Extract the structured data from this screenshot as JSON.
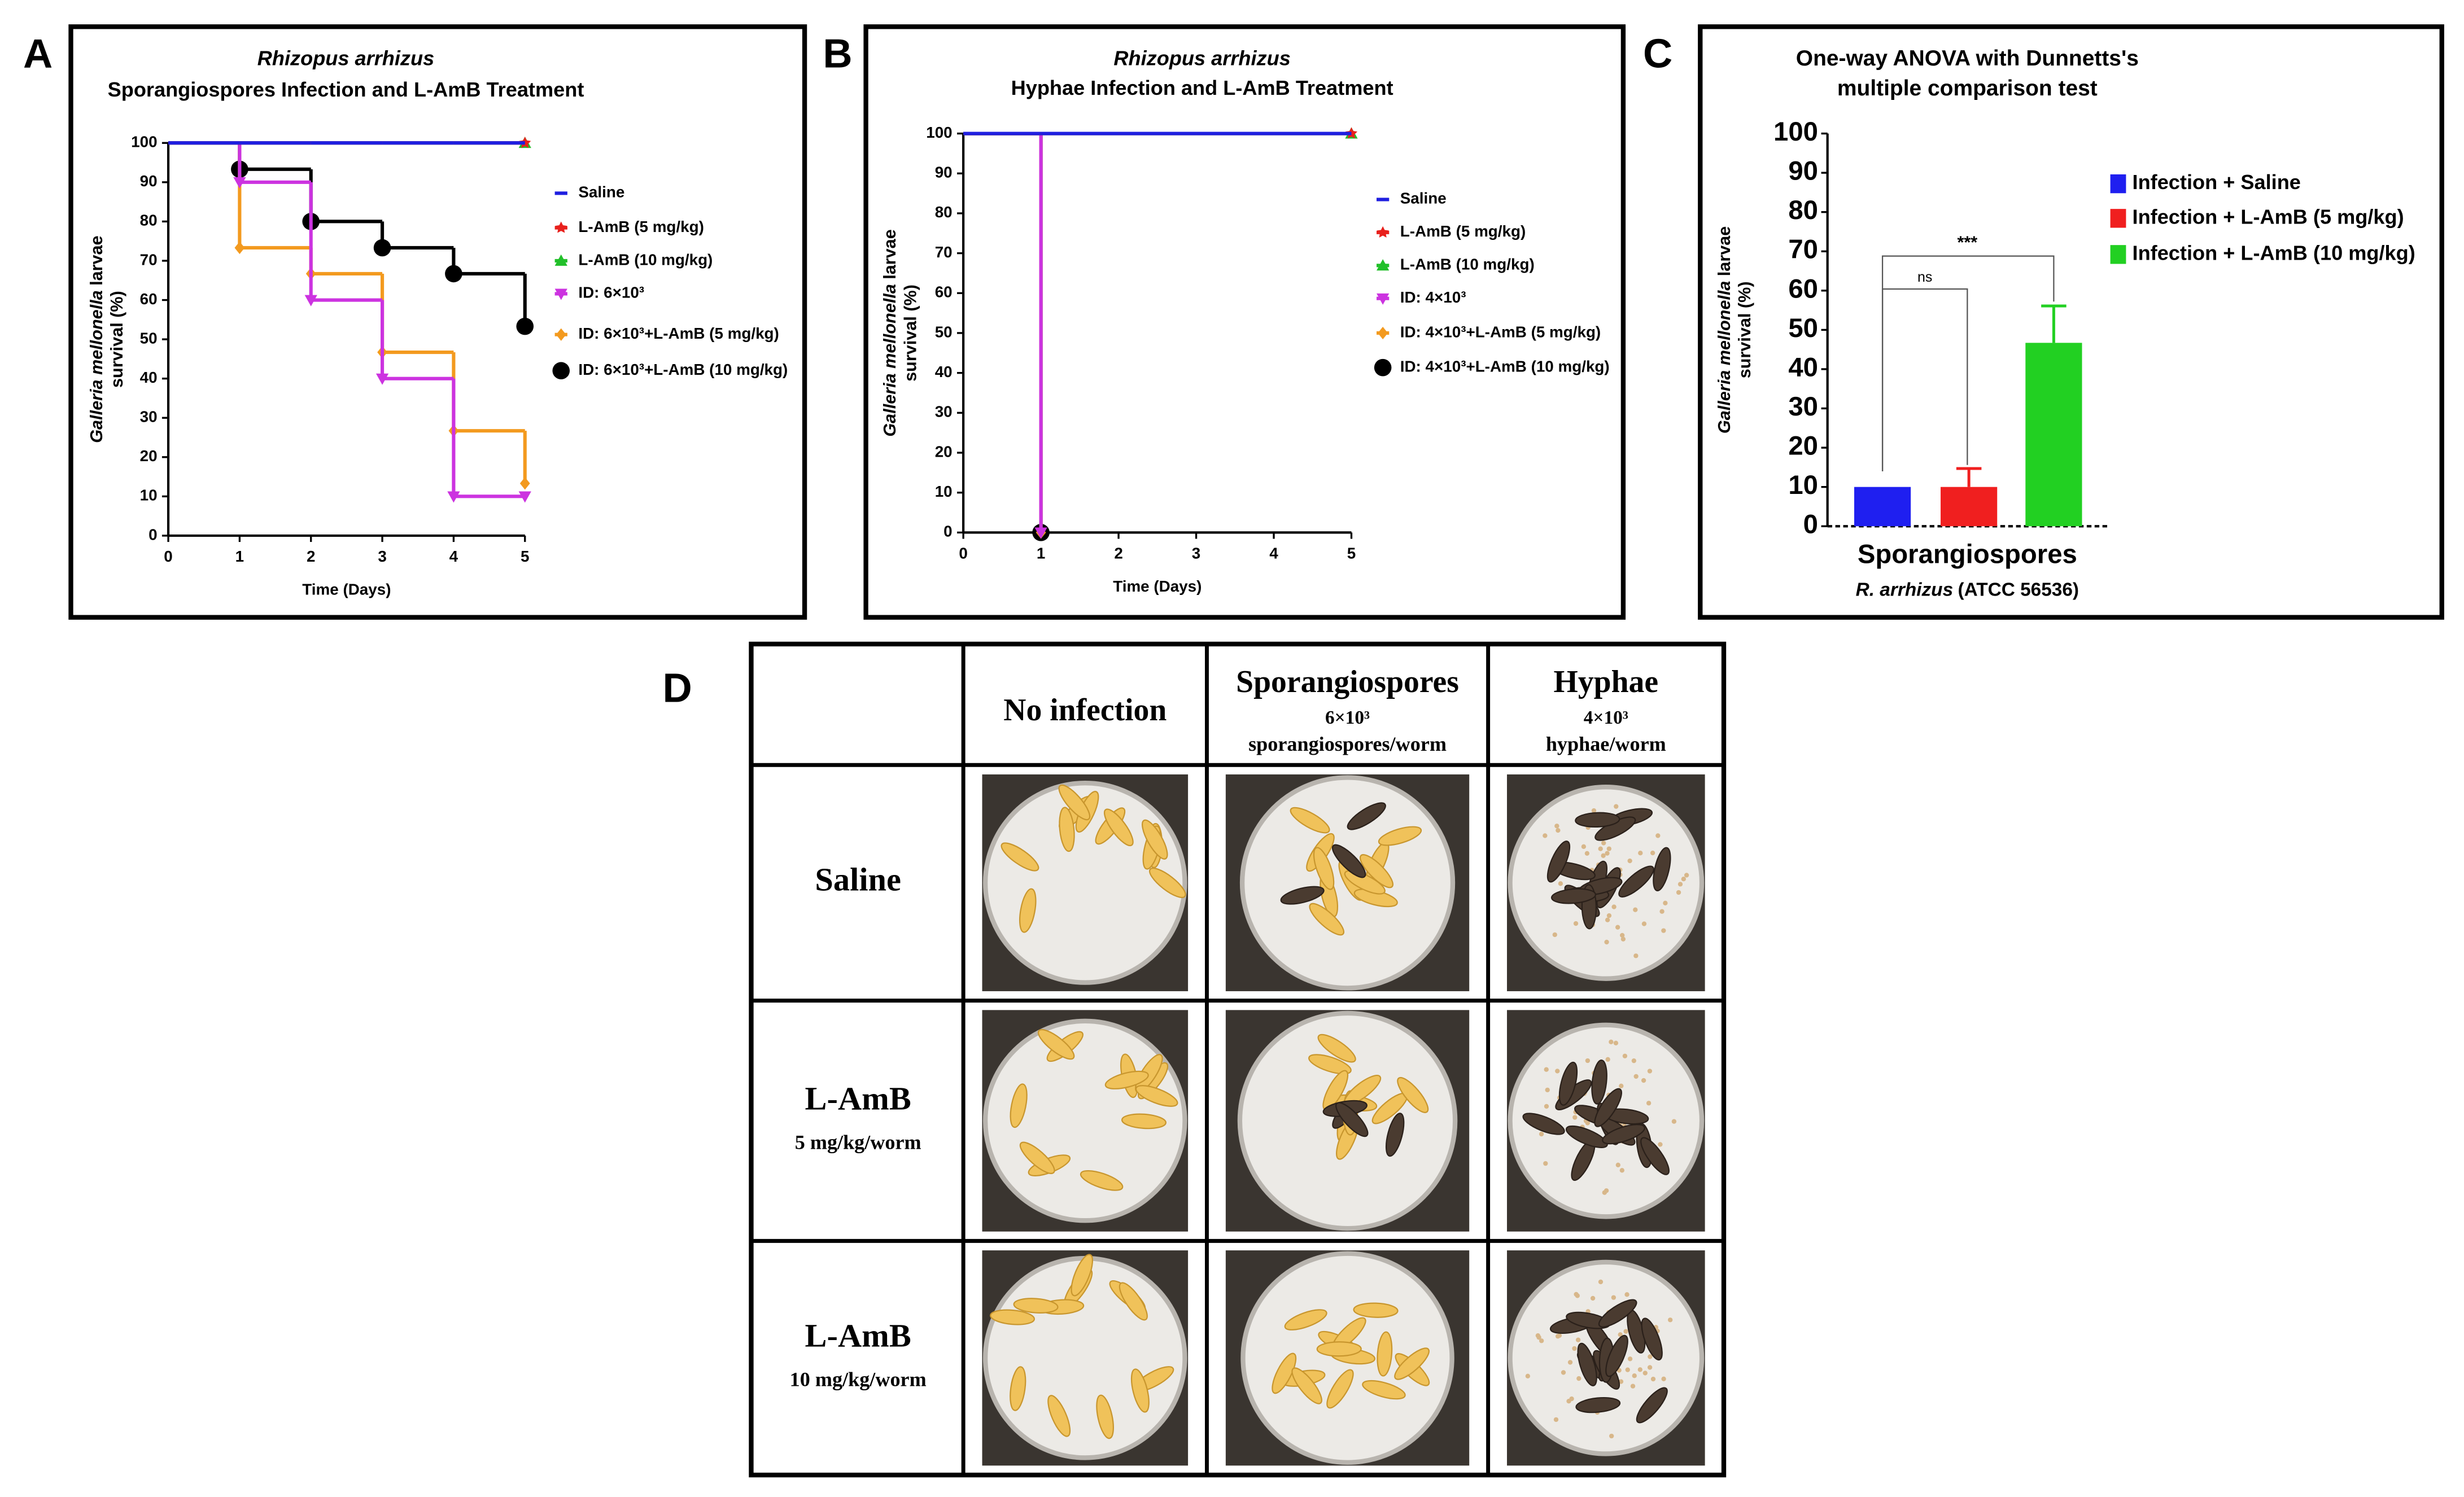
{
  "panel_labels": [
    "A",
    "B",
    "C",
    "D"
  ],
  "chart_data": [
    {
      "type": "step",
      "title": "Rhizopus arrhizus",
      "subtitle": "Sporangiospores Infection and L-AmB Treatment",
      "y_label_italic": "Galleria mellonella",
      "y_label": "larvae",
      "y_label_2": "survival (%)",
      "x_label": "Time (Days)",
      "x": [
        0,
        1,
        2,
        3,
        4,
        5
      ],
      "xlim": [
        0,
        5
      ],
      "xticks": [
        0,
        1,
        2,
        3,
        4,
        5
      ],
      "ylim": [
        0,
        100
      ],
      "yticks": [
        0,
        10,
        20,
        30,
        40,
        50,
        60,
        70,
        80,
        90,
        100
      ],
      "series": [
        {
          "name": "Saline",
          "color": "#1f1fe0",
          "marker": "none",
          "values": [
            100,
            100,
            100,
            100,
            100,
            100
          ]
        },
        {
          "name": "L-AmB (5 mg/kg)",
          "color": "#e8201c",
          "marker": "star",
          "values": [
            100,
            100,
            100,
            100,
            100,
            100
          ]
        },
        {
          "name": "L-AmB (10 mg/kg)",
          "color": "#22c02a",
          "marker": "triangle",
          "values": [
            100,
            100,
            100,
            100,
            100,
            100
          ]
        },
        {
          "name": "ID: 6×10³",
          "color": "#cc33e0",
          "marker": "triangle-down",
          "values": [
            100,
            90,
            60,
            40,
            10,
            10
          ]
        },
        {
          "name": "ID: 6×10³+L-AmB (5 mg/kg)",
          "color": "#f39a1f",
          "marker": "diamond",
          "values": [
            100,
            73.3,
            66.7,
            46.7,
            26.7,
            13.3
          ]
        },
        {
          "name": "ID: 6×10³+L-AmB (10 mg/kg)",
          "color": "#000000",
          "marker": "circle",
          "values": [
            100,
            93.3,
            80,
            73.3,
            66.7,
            53.3
          ]
        }
      ]
    },
    {
      "type": "step",
      "title": "Rhizopus arrhizus",
      "subtitle": "Hyphae Infection and L-AmB Treatment",
      "y_label_italic": "Galleria mellonella",
      "y_label": "larvae",
      "y_label_2": "survival (%)",
      "x_label": "Time (Days)",
      "x": [
        0,
        1,
        2,
        3,
        4,
        5
      ],
      "xlim": [
        0,
        5
      ],
      "xticks": [
        0,
        1,
        2,
        3,
        4,
        5
      ],
      "ylim": [
        0,
        100
      ],
      "yticks": [
        0,
        10,
        20,
        30,
        40,
        50,
        60,
        70,
        80,
        90,
        100
      ],
      "series": [
        {
          "name": "Saline",
          "color": "#1f1fe0",
          "marker": "none",
          "values": [
            100,
            100,
            100,
            100,
            100,
            100
          ]
        },
        {
          "name": "L-AmB (5 mg/kg)",
          "color": "#e8201c",
          "marker": "star",
          "values": [
            100,
            100,
            100,
            100,
            100,
            100
          ]
        },
        {
          "name": "L-AmB (10 mg/kg)",
          "color": "#22c02a",
          "marker": "triangle",
          "values": [
            100,
            100,
            100,
            100,
            100,
            100
          ]
        },
        {
          "name": "ID: 4×10³",
          "color": "#cc33e0",
          "marker": "triangle-down",
          "values": [
            100,
            0,
            null,
            null,
            null,
            null
          ]
        },
        {
          "name": "ID: 4×10³+L-AmB (5 mg/kg)",
          "color": "#f39a1f",
          "marker": "diamond",
          "values": [
            100,
            0,
            null,
            null,
            null,
            null
          ]
        },
        {
          "name": "ID: 4×10³+L-AmB (10 mg/kg)",
          "color": "#000000",
          "marker": "circle",
          "values": [
            100,
            0,
            null,
            null,
            null,
            null
          ]
        }
      ]
    },
    {
      "type": "bar",
      "title": "One-way ANOVA with Dunnetts's",
      "title_2": "multiple comparison test",
      "y_label_italic": "Galleria mellonella",
      "y_label": "larvae",
      "y_label_2": "survival (%)",
      "categories": [
        "Sporangiospores"
      ],
      "x_label_italic": "R. arrhizus",
      "x_label": "(ATCC 56536)",
      "ylim": [
        0,
        100
      ],
      "yticks": [
        0,
        10,
        20,
        30,
        40,
        50,
        60,
        70,
        80,
        90,
        100
      ],
      "series": [
        {
          "name": "Infection + Saline",
          "color": "#1f1ff0",
          "values": [
            10
          ]
        },
        {
          "name": "Infection + L-AmB (5 mg/kg)",
          "color": "#f01f1f",
          "values": [
            10
          ],
          "errors": [
            4.7
          ]
        },
        {
          "name": "Infection + L-AmB (10 mg/kg)",
          "color": "#22d022",
          "values": [
            46.7
          ],
          "errors": [
            9.4
          ]
        }
      ],
      "annotations": [
        "ns",
        "***"
      ]
    }
  ],
  "table": {
    "columns": [
      {
        "title": "No infection"
      },
      {
        "title": "Sporangiospores",
        "dose": "6×10³",
        "unit": "sporangiospores/worm"
      },
      {
        "title": "Hyphae",
        "dose": "4×10³",
        "unit": "hyphae/worm"
      }
    ],
    "rows": [
      {
        "title": "Saline"
      },
      {
        "title": "L-AmB",
        "dose": "5 mg/kg/worm"
      },
      {
        "title": "L-AmB",
        "dose": "10 mg/kg/worm"
      }
    ]
  }
}
